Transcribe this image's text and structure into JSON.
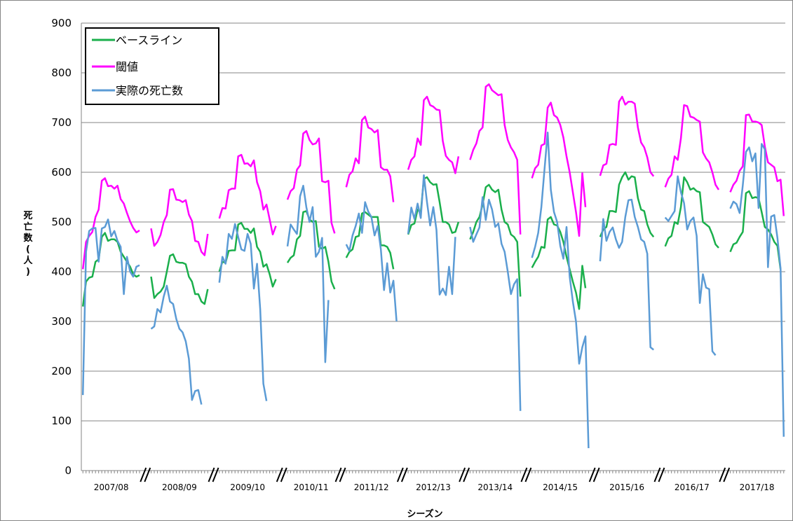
{
  "chart_data": {
    "type": "line",
    "xlabel": "シーズン",
    "ylabel": "死亡数(人)",
    "ylim": [
      0,
      900
    ],
    "yticks": [
      0,
      100,
      200,
      300,
      400,
      500,
      600,
      700,
      800,
      900
    ],
    "grid": true,
    "legend_position": "top-left",
    "seasons": [
      "2007/08",
      "2008/09",
      "2009/10",
      "2010/11",
      "2011/12",
      "2012/13",
      "2013/14",
      "2014/15",
      "2015/16",
      "2016/17",
      "2017/18"
    ],
    "series": [
      {
        "name": "ベースライン",
        "color": "#1aaf4b",
        "values": [
          [
            330,
            380,
            388,
            390,
            420,
            425,
            470,
            478,
            462,
            465,
            465,
            460,
            440,
            430,
            420,
            410,
            395,
            390,
            393
          ],
          [
            390,
            347,
            355,
            360,
            370,
            400,
            432,
            435,
            420,
            418,
            418,
            415,
            390,
            380,
            355,
            355,
            340,
            335,
            365
          ],
          [
            400,
            420,
            418,
            442,
            443,
            443,
            495,
            498,
            486,
            486,
            478,
            487,
            450,
            440,
            410,
            415,
            395,
            370,
            385
          ],
          [
            418,
            428,
            433,
            465,
            472,
            520,
            522,
            505,
            500,
            502,
            450,
            446,
            450,
            420,
            380,
            365
          ],
          [
            428,
            440,
            445,
            470,
            472,
            517,
            520,
            515,
            510,
            510,
            510,
            453,
            453,
            450,
            438,
            405
          ],
          [
            475,
            494,
            497,
            525,
            519,
            587,
            590,
            580,
            575,
            576,
            540,
            500,
            500,
            495,
            478,
            480,
            500
          ],
          [
            465,
            480,
            500,
            510,
            535,
            570,
            575,
            565,
            560,
            565,
            525,
            500,
            495,
            475,
            470,
            460,
            350
          ],
          [
            408,
            420,
            430,
            450,
            448,
            505,
            510,
            495,
            493,
            480,
            460,
            430,
            405,
            380,
            358,
            325,
            412,
            367
          ],
          [
            470,
            485,
            490,
            522,
            522,
            520,
            575,
            590,
            600,
            585,
            592,
            590,
            548,
            525,
            522,
            495,
            478,
            470
          ],
          [
            451,
            467,
            472,
            500,
            496,
            530,
            590,
            580,
            565,
            568,
            562,
            560,
            500,
            495,
            490,
            475,
            455,
            448
          ],
          [
            440,
            455,
            458,
            470,
            480,
            558,
            562,
            548,
            550,
            548,
            520,
            490,
            485,
            475,
            460,
            452,
            404
          ]
        ]
      },
      {
        "name": "閾値",
        "color": "#ff00ff",
        "values": [
          [
            405,
            460,
            472,
            480,
            510,
            525,
            583,
            588,
            572,
            573,
            567,
            573,
            546,
            537,
            518,
            501,
            488,
            479,
            483
          ],
          [
            487,
            452,
            460,
            474,
            500,
            514,
            565,
            566,
            545,
            544,
            540,
            544,
            515,
            502,
            462,
            460,
            440,
            433,
            476
          ],
          [
            507,
            528,
            527,
            564,
            567,
            567,
            632,
            635,
            617,
            618,
            612,
            624,
            580,
            562,
            525,
            535,
            505,
            475,
            492
          ],
          [
            545,
            562,
            568,
            605,
            614,
            678,
            683,
            665,
            656,
            658,
            668,
            582,
            580,
            583,
            498,
            477
          ],
          [
            570,
            595,
            602,
            628,
            618,
            705,
            712,
            690,
            687,
            680,
            685,
            610,
            605,
            605,
            592,
            540
          ],
          [
            605,
            625,
            632,
            668,
            655,
            745,
            752,
            735,
            732,
            726,
            725,
            663,
            633,
            625,
            620,
            598,
            632
          ],
          [
            625,
            645,
            658,
            683,
            690,
            772,
            777,
            765,
            760,
            755,
            757,
            695,
            665,
            650,
            640,
            625,
            475
          ],
          [
            588,
            608,
            615,
            654,
            657,
            730,
            740,
            715,
            710,
            695,
            670,
            632,
            600,
            560,
            520,
            472,
            598,
            530
          ],
          [
            593,
            614,
            617,
            655,
            657,
            655,
            742,
            752,
            736,
            742,
            742,
            738,
            690,
            660,
            650,
            630,
            600,
            592
          ],
          [
            570,
            587,
            595,
            632,
            625,
            668,
            735,
            733,
            712,
            710,
            705,
            702,
            640,
            628,
            620,
            600,
            575,
            565
          ],
          [
            560,
            575,
            583,
            603,
            612,
            715,
            716,
            702,
            702,
            700,
            695,
            652,
            620,
            615,
            610,
            582,
            585,
            512
          ]
        ]
      },
      {
        "name": "実際の死亡数",
        "color": "#5b9bd5",
        "values": [
          [
            152,
            440,
            482,
            487,
            488,
            420,
            487,
            490,
            505,
            471,
            482,
            462,
            450,
            355,
            430,
            400,
            390,
            410,
            413
          ],
          [
            285,
            290,
            325,
            318,
            350,
            372,
            340,
            335,
            305,
            285,
            278,
            260,
            225,
            142,
            160,
            162,
            133
          ],
          [
            378,
            430,
            416,
            476,
            466,
            496,
            470,
            445,
            442,
            476,
            456,
            366,
            416,
            325,
            175,
            140
          ],
          [
            451,
            495,
            485,
            476,
            552,
            573,
            530,
            500,
            530,
            430,
            440,
            468,
            218,
            343
          ],
          [
            455,
            442,
            473,
            492,
            517,
            478,
            540,
            521,
            510,
            473,
            492,
            445,
            363,
            417,
            358,
            382,
            300
          ],
          [
            476,
            529,
            506,
            537,
            508,
            594,
            540,
            493,
            530,
            484,
            354,
            366,
            353,
            410,
            355,
            470
          ],
          [
            490,
            460,
            475,
            489,
            550,
            504,
            545,
            525,
            490,
            497,
            456,
            440,
            400,
            355,
            375,
            385,
            120
          ],
          [
            428,
            450,
            478,
            530,
            606,
            680,
            565,
            520,
            500,
            452,
            426,
            490,
            390,
            340,
            300,
            215,
            248,
            270,
            45
          ],
          [
            421,
            506,
            462,
            480,
            489,
            465,
            448,
            460,
            510,
            544,
            545,
            510,
            490,
            465,
            460,
            436,
            248,
            243
          ],
          [
            509,
            502,
            512,
            522,
            592,
            560,
            538,
            485,
            502,
            509,
            472,
            337,
            395,
            368,
            365,
            240,
            232
          ],
          [
            527,
            541,
            536,
            518,
            574,
            641,
            650,
            622,
            638,
            528,
            657,
            646,
            409,
            511,
            514,
            468,
            406,
            68
          ]
        ]
      }
    ]
  }
}
